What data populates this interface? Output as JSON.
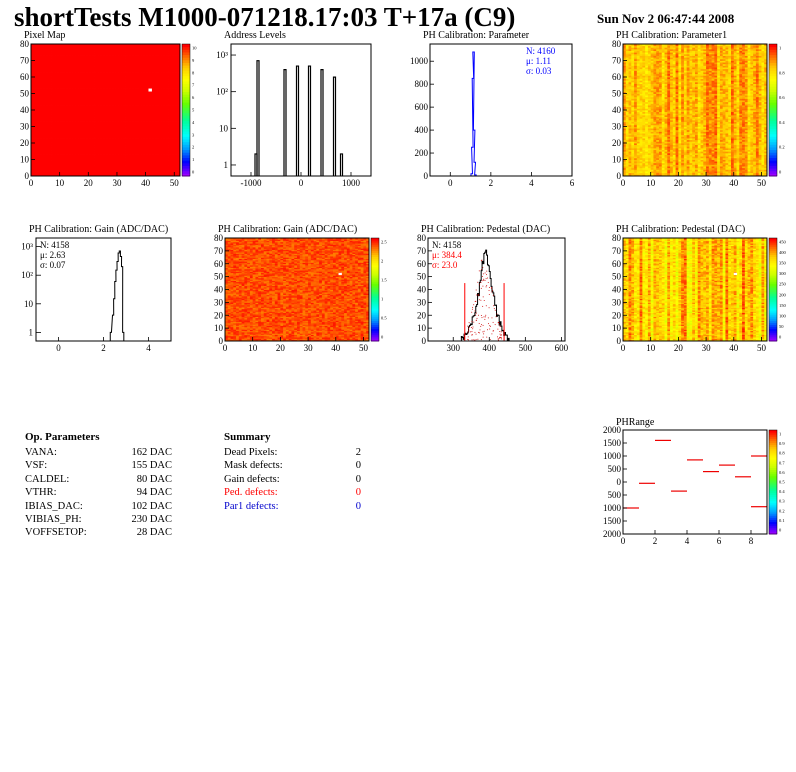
{
  "header": {
    "title": "shortTests M1000-071218.17:03 T+17a (C9)",
    "date": "Sun Nov  2 06:47:44 2008"
  },
  "chart_data": [
    {
      "id": "pixel-map",
      "type": "heatmap",
      "title": "Pixel Map",
      "xlim": [
        0,
        52
      ],
      "ylim": [
        0,
        80
      ],
      "xticks": [
        "0",
        "10",
        "20",
        "30",
        "40",
        "50"
      ],
      "yticks": [
        "0",
        "10",
        "20",
        "30",
        "40",
        "50",
        "60",
        "70",
        "80"
      ],
      "zlim": [
        0,
        10
      ],
      "zticks": [
        "10",
        "9",
        "8",
        "7",
        "6",
        "5",
        "4",
        "3",
        "2",
        "1",
        "0"
      ],
      "uniform_value": 10,
      "outliers": [
        {
          "x": 41,
          "y": 52,
          "value": 0
        }
      ]
    },
    {
      "id": "address-levels",
      "type": "bar",
      "title": "Address Levels",
      "log_y": true,
      "xlim": [
        -1400,
        1400
      ],
      "ylim": [
        0.5,
        2000
      ],
      "xticks": [
        "-1000",
        "0",
        "1000"
      ],
      "yticks": [
        "1",
        "10",
        "10²",
        "10³"
      ],
      "peaks": [
        {
          "x": -860,
          "value": 2
        },
        {
          "x": -820,
          "value": 700
        },
        {
          "x": -280,
          "value": 400
        },
        {
          "x": -30,
          "value": 500
        },
        {
          "x": 210,
          "value": 500
        },
        {
          "x": 460,
          "value": 400
        },
        {
          "x": 710,
          "value": 250
        },
        {
          "x": 850,
          "value": 2
        }
      ]
    },
    {
      "id": "ph-calibration-parameter",
      "type": "bar",
      "title": "PH Calibration: Parameter",
      "xlim": [
        -1,
        6
      ],
      "ylim": [
        0,
        1150
      ],
      "xticks": [
        "0",
        "2",
        "4",
        "6"
      ],
      "yticks": [
        "0",
        "200",
        "400",
        "600",
        "800",
        "1000"
      ],
      "stats": {
        "n": "N: 4160",
        "mean": "μ: 1.11",
        "sigma": "σ: 0.03"
      },
      "series": [
        {
          "x": [
            1.02,
            1.05,
            1.08,
            1.11,
            1.14,
            1.17,
            1.2
          ],
          "values": [
            20,
            250,
            850,
            1080,
            400,
            120,
            10
          ]
        }
      ]
    },
    {
      "id": "ph-calibration-parameter1",
      "type": "heatmap",
      "title": "PH Calibration: Parameter1",
      "xlim": [
        0,
        52
      ],
      "ylim": [
        0,
        80
      ],
      "xticks": [
        "0",
        "10",
        "20",
        "30",
        "40",
        "50"
      ],
      "yticks": [
        "0",
        "10",
        "20",
        "30",
        "40",
        "50",
        "60",
        "70",
        "80"
      ],
      "zlim": [
        0,
        1
      ],
      "zticks": [
        "1",
        "0.8",
        "0.6",
        "0.4",
        "0.2",
        "0"
      ],
      "typical_value": 0.85
    },
    {
      "id": "ph-calibration-gain-hist",
      "type": "line",
      "title": "PH Calibration: Gain (ADC/DAC)",
      "log_y": true,
      "xlim": [
        -1,
        5
      ],
      "ylim": [
        0.5,
        2000
      ],
      "xticks": [
        "0",
        "2",
        "4"
      ],
      "yticks": [
        "1",
        "10",
        "10²",
        "10³"
      ],
      "stats": {
        "n": "N: 4158",
        "mean": "μ: 2.63",
        "sigma": "σ: 0.07"
      },
      "series": [
        {
          "x": [
            2.3,
            2.4,
            2.45,
            2.5,
            2.55,
            2.6,
            2.65,
            2.7,
            2.75,
            2.8,
            2.85
          ],
          "values": [
            1,
            4,
            15,
            60,
            150,
            300,
            600,
            700,
            450,
            200,
            1
          ]
        }
      ]
    },
    {
      "id": "ph-calibration-gain-map",
      "type": "heatmap",
      "title": "PH Calibration: Gain (ADC/DAC)",
      "xlim": [
        0,
        52
      ],
      "ylim": [
        0,
        80
      ],
      "xticks": [
        "0",
        "10",
        "20",
        "30",
        "40",
        "50"
      ],
      "yticks": [
        "0",
        "10",
        "20",
        "30",
        "40",
        "50",
        "60",
        "70",
        "80"
      ],
      "zlim": [
        0,
        2.8
      ],
      "zticks": [
        "2.5",
        "2",
        "1.5",
        "1",
        "0.5",
        "0"
      ],
      "typical_value": 2.63,
      "outliers": [
        {
          "x": 41,
          "y": 52,
          "value": 0
        }
      ]
    },
    {
      "id": "ph-calibration-pedestal-hist",
      "type": "bar",
      "title": "PH Calibration: Pedestal (DAC)",
      "xlim": [
        230,
        610
      ],
      "ylim": [
        0,
        80
      ],
      "xticks": [
        "300",
        "400",
        "500",
        "600"
      ],
      "yticks": [
        "0",
        "10",
        "20",
        "30",
        "40",
        "50",
        "60",
        "70",
        "80"
      ],
      "stats": {
        "n": "N: 4158",
        "mean": "μ: 384.4",
        "sigma": "σ: 23.0"
      },
      "cut_lines": [
        332,
        441
      ],
      "series": [
        {
          "x": [
            320,
            330,
            340,
            350,
            360,
            370,
            375,
            380,
            385,
            390,
            395,
            400,
            410,
            420,
            430,
            440,
            450,
            460
          ],
          "values": [
            1,
            3,
            8,
            14,
            24,
            38,
            50,
            60,
            66,
            72,
            62,
            52,
            38,
            22,
            12,
            5,
            2,
            1
          ]
        }
      ]
    },
    {
      "id": "ph-calibration-pedestal-map",
      "type": "heatmap",
      "title": "PH Calibration: Pedestal (DAC)",
      "xlim": [
        0,
        52
      ],
      "ylim": [
        0,
        80
      ],
      "xticks": [
        "0",
        "10",
        "20",
        "30",
        "40",
        "50"
      ],
      "yticks": [
        "0",
        "10",
        "20",
        "30",
        "40",
        "50",
        "60",
        "70",
        "80"
      ],
      "zlim": [
        0,
        460
      ],
      "zticks": [
        "450",
        "400",
        "350",
        "300",
        "250",
        "200",
        "150",
        "100",
        "50",
        "0"
      ],
      "typical_value": 380,
      "outliers": [
        {
          "x": 40,
          "y": 52,
          "value": 0
        }
      ]
    },
    {
      "id": "ph-range",
      "type": "scatter",
      "title": "PHRange",
      "xlim": [
        0,
        9
      ],
      "ylim": [
        -2000,
        2000
      ],
      "xticks": [
        "0",
        "2",
        "4",
        "6",
        "8"
      ],
      "yticks": [
        "2000",
        "1500",
        "1000",
        "500",
        "0",
        "500",
        "1000",
        "1500",
        "2000"
      ],
      "zticks": [
        "1",
        "0.9",
        "0.8",
        "0.7",
        "0.6",
        "0.5",
        "0.4",
        "0.3",
        "0.2",
        "0.1",
        "0"
      ],
      "series": [
        {
          "x": [
            0.5,
            1.5,
            2.5,
            3.5,
            4.5,
            5.5,
            6.5,
            7.5,
            8.5
          ],
          "values": [
            -1000,
            -50,
            1600,
            -350,
            850,
            400,
            650,
            200,
            -950
          ],
          "extra": [
            {
              "x": 8.5,
              "value": 1000
            }
          ]
        }
      ]
    }
  ],
  "op_parameters": {
    "heading": "Op. Parameters",
    "rows": [
      {
        "label": "VANA:",
        "value": "162 DAC"
      },
      {
        "label": "VSF:",
        "value": "155 DAC"
      },
      {
        "label": "CALDEL:",
        "value": "80 DAC"
      },
      {
        "label": "VTHR:",
        "value": "94 DAC"
      },
      {
        "label": "IBIAS_DAC:",
        "value": "102 DAC"
      },
      {
        "label": "VIBIAS_PH:",
        "value": "230 DAC"
      },
      {
        "label": "VOFFSETOP:",
        "value": "28 DAC"
      }
    ]
  },
  "summary": {
    "heading": "Summary",
    "rows": [
      {
        "label": "Dead Pixels:",
        "value": "2",
        "color": "#000000"
      },
      {
        "label": "Mask defects:",
        "value": "0",
        "color": "#000000"
      },
      {
        "label": "Gain defects:",
        "value": "0",
        "color": "#000000"
      },
      {
        "label": "Ped. defects:",
        "value": "0",
        "color": "#ff0000"
      },
      {
        "label": "Par1 defects:",
        "value": "0",
        "color": "#0000cc"
      }
    ]
  }
}
